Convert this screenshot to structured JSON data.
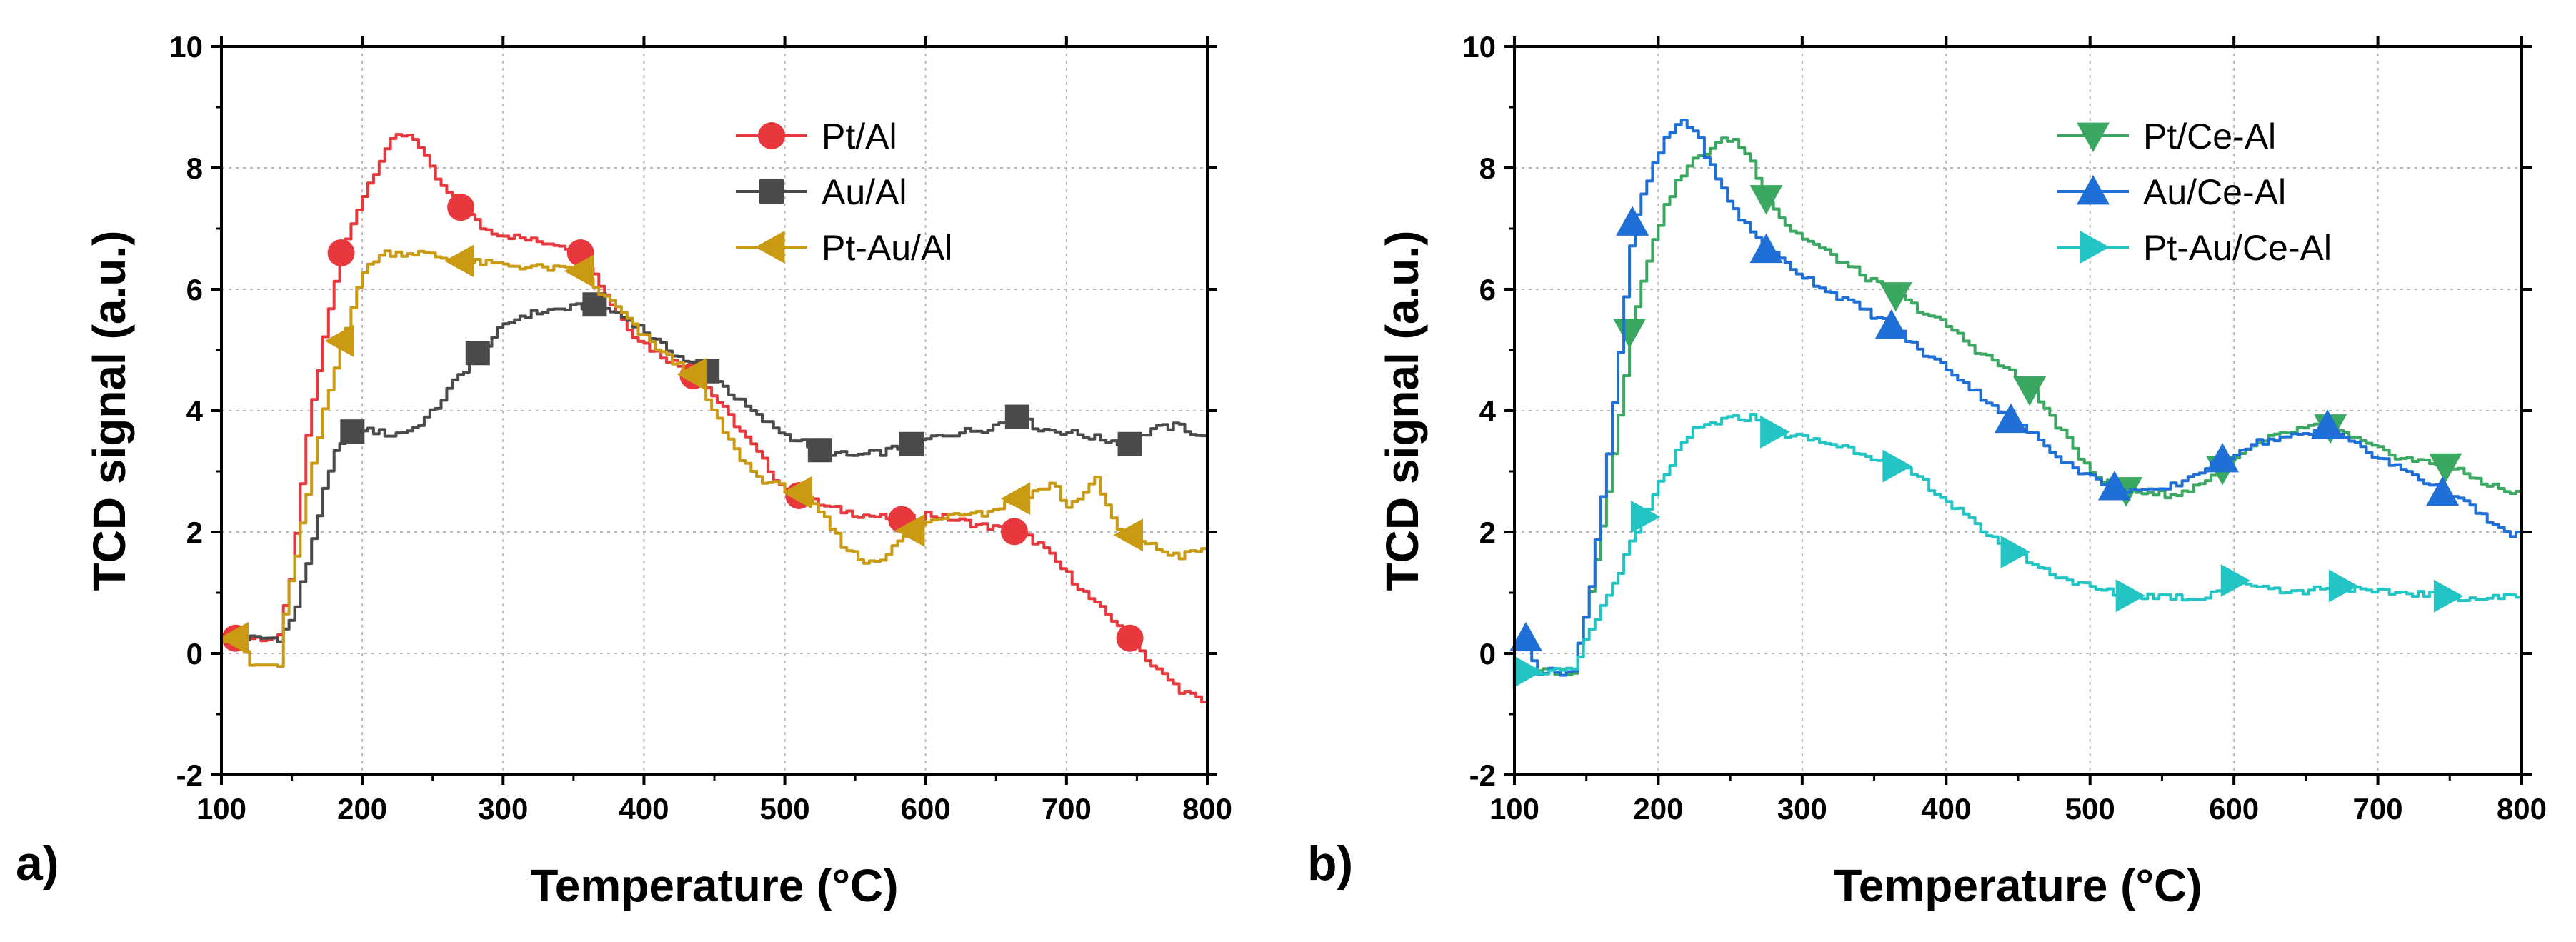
{
  "figure": {
    "description_panels": [
      "a)",
      "b)"
    ]
  },
  "chart_data": [
    {
      "type": "line",
      "panel_label": "a)",
      "xlabel": "Temperature (°C)",
      "ylabel": "TCD signal (a.u.)",
      "xlim": [
        100,
        800
      ],
      "ylim": [
        -2,
        10
      ],
      "xticks": [
        100,
        200,
        300,
        400,
        500,
        600,
        700,
        800
      ],
      "yticks": [
        -2,
        0,
        2,
        4,
        6,
        8,
        10
      ],
      "grid": true,
      "legend_position": "top-right",
      "series": [
        {
          "name": "Pt/Al",
          "color": "#e8383d",
          "marker": "circle",
          "points": [
            [
              100,
              0.25
            ],
            [
              140,
              0.25
            ],
            [
              150,
              1.5
            ],
            [
              160,
              3.6
            ],
            [
              175,
              5.6
            ],
            [
              185,
              6.6
            ],
            [
              195,
              7.3
            ],
            [
              205,
              7.8
            ],
            [
              215,
              8.3
            ],
            [
              225,
              8.55
            ],
            [
              235,
              8.55
            ],
            [
              245,
              8.1
            ],
            [
              255,
              7.7
            ],
            [
              270,
              7.35
            ],
            [
              285,
              7.0
            ],
            [
              300,
              6.9
            ],
            [
              320,
              6.8
            ],
            [
              340,
              6.75
            ],
            [
              355,
              6.6
            ],
            [
              365,
              6.2
            ],
            [
              375,
              5.8
            ],
            [
              390,
              5.3
            ],
            [
              405,
              5.0
            ],
            [
              420,
              4.8
            ],
            [
              440,
              4.5
            ],
            [
              460,
              3.9
            ],
            [
              480,
              3.3
            ],
            [
              495,
              2.8
            ],
            [
              510,
              2.6
            ],
            [
              530,
              2.4
            ],
            [
              550,
              2.3
            ],
            [
              565,
              2.25
            ],
            [
              585,
              2.2
            ],
            [
              600,
              2.3
            ],
            [
              620,
              2.2
            ],
            [
              640,
              2.1
            ],
            [
              665,
              2.0
            ],
            [
              680,
              1.8
            ],
            [
              700,
              1.3
            ],
            [
              720,
              0.8
            ],
            [
              735,
              0.5
            ],
            [
              745,
              0.25
            ],
            [
              760,
              -0.2
            ],
            [
              780,
              -0.6
            ],
            [
              800,
              -0.85
            ]
          ],
          "markers_x": [
            110,
            185,
            270,
            355,
            435,
            510,
            583,
            663,
            745
          ]
        },
        {
          "name": "Au/Al",
          "color": "#4a4a4a",
          "marker": "square",
          "points": [
            [
              100,
              0.25
            ],
            [
              140,
              0.25
            ],
            [
              150,
              0.6
            ],
            [
              160,
              1.5
            ],
            [
              170,
              2.5
            ],
            [
              180,
              3.3
            ],
            [
              192,
              3.65
            ],
            [
              200,
              3.7
            ],
            [
              220,
              3.6
            ],
            [
              235,
              3.7
            ],
            [
              250,
              4.0
            ],
            [
              265,
              4.5
            ],
            [
              282,
              4.95
            ],
            [
              295,
              5.3
            ],
            [
              310,
              5.55
            ],
            [
              330,
              5.65
            ],
            [
              350,
              5.7
            ],
            [
              365,
              5.75
            ],
            [
              380,
              5.6
            ],
            [
              395,
              5.4
            ],
            [
              410,
              5.1
            ],
            [
              430,
              4.8
            ],
            [
              445,
              4.65
            ],
            [
              460,
              4.3
            ],
            [
              480,
              3.9
            ],
            [
              500,
              3.6
            ],
            [
              525,
              3.35
            ],
            [
              545,
              3.25
            ],
            [
              565,
              3.3
            ],
            [
              590,
              3.45
            ],
            [
              610,
              3.6
            ],
            [
              640,
              3.7
            ],
            [
              665,
              3.9
            ],
            [
              680,
              3.7
            ],
            [
              700,
              3.65
            ],
            [
              720,
              3.55
            ],
            [
              745,
              3.45
            ],
            [
              760,
              3.7
            ],
            [
              780,
              3.75
            ],
            [
              800,
              3.5
            ]
          ],
          "markers_x": [
            193,
            282,
            365,
            445,
            525,
            590,
            665,
            745
          ]
        },
        {
          "name": "Pt-Au/Al",
          "color": "#c99a12",
          "marker": "triangle-left",
          "points": [
            [
              100,
              0.25
            ],
            [
              110,
              0.25
            ],
            [
              120,
              -0.2
            ],
            [
              140,
              -0.2
            ],
            [
              145,
              0.8
            ],
            [
              155,
              2.0
            ],
            [
              170,
              3.8
            ],
            [
              185,
              5.15
            ],
            [
              195,
              6.0
            ],
            [
              205,
              6.45
            ],
            [
              215,
              6.6
            ],
            [
              240,
              6.6
            ],
            [
              260,
              6.5
            ],
            [
              275,
              6.45
            ],
            [
              300,
              6.4
            ],
            [
              330,
              6.35
            ],
            [
              355,
              6.3
            ],
            [
              365,
              6.0
            ],
            [
              380,
              5.7
            ],
            [
              395,
              5.3
            ],
            [
              410,
              5.0
            ],
            [
              420,
              4.8
            ],
            [
              435,
              4.6
            ],
            [
              450,
              3.9
            ],
            [
              465,
              3.3
            ],
            [
              480,
              2.9
            ],
            [
              495,
              2.75
            ],
            [
              510,
              2.65
            ],
            [
              525,
              2.3
            ],
            [
              540,
              1.8
            ],
            [
              555,
              1.5
            ],
            [
              570,
              1.6
            ],
            [
              585,
              1.95
            ],
            [
              595,
              2.1
            ],
            [
              615,
              2.3
            ],
            [
              630,
              2.35
            ],
            [
              640,
              2.3
            ],
            [
              660,
              2.5
            ],
            [
              670,
              2.6
            ],
            [
              690,
              2.8
            ],
            [
              700,
              2.4
            ],
            [
              720,
              2.85
            ],
            [
              735,
              2.05
            ],
            [
              750,
              1.9
            ],
            [
              765,
              1.7
            ],
            [
              780,
              1.6
            ],
            [
              800,
              1.75
            ]
          ],
          "markers_x": [
            110,
            185,
            270,
            355,
            435,
            510,
            590,
            665,
            745
          ]
        }
      ]
    },
    {
      "type": "line",
      "panel_label": "b)",
      "xlabel": "Temperature (°C)",
      "ylabel": "TCD signal (a.u.)",
      "xlim": [
        100,
        800
      ],
      "ylim": [
        -2,
        10
      ],
      "xticks": [
        100,
        200,
        300,
        400,
        500,
        600,
        700,
        800
      ],
      "yticks": [
        -2,
        0,
        2,
        4,
        6,
        8,
        10
      ],
      "grid": true,
      "legend_position": "top-right",
      "series": [
        {
          "name": "Pt/Ce-Al",
          "color": "#3aa860",
          "marker": "triangle-down",
          "points": [
            [
              100,
              -0.3
            ],
            [
              140,
              -0.3
            ],
            [
              150,
              0.8
            ],
            [
              165,
              2.8
            ],
            [
              180,
              5.3
            ],
            [
              195,
              6.8
            ],
            [
              210,
              7.7
            ],
            [
              225,
              8.15
            ],
            [
              240,
              8.4
            ],
            [
              250,
              8.5
            ],
            [
              262,
              8.2
            ],
            [
              275,
              7.5
            ],
            [
              290,
              7.0
            ],
            [
              310,
              6.7
            ],
            [
              330,
              6.4
            ],
            [
              350,
              6.1
            ],
            [
              365,
              5.9
            ],
            [
              385,
              5.6
            ],
            [
              400,
              5.4
            ],
            [
              420,
              5.0
            ],
            [
              440,
              4.7
            ],
            [
              458,
              4.35
            ],
            [
              475,
              3.8
            ],
            [
              490,
              3.3
            ],
            [
              505,
              2.9
            ],
            [
              520,
              2.7
            ],
            [
              540,
              2.65
            ],
            [
              560,
              2.6
            ],
            [
              575,
              2.8
            ],
            [
              590,
              3.0
            ],
            [
              605,
              3.3
            ],
            [
              625,
              3.55
            ],
            [
              645,
              3.7
            ],
            [
              665,
              3.75
            ],
            [
              680,
              3.55
            ],
            [
              700,
              3.35
            ],
            [
              720,
              3.2
            ],
            [
              745,
              3.1
            ],
            [
              765,
              2.9
            ],
            [
              785,
              2.7
            ],
            [
              800,
              2.6
            ]
          ],
          "markers_x": [
            180,
            275,
            365,
            458,
            525,
            592,
            667,
            747
          ]
        },
        {
          "name": "Au/Ce-Al",
          "color": "#1f6fd6",
          "marker": "triangle-up",
          "points": [
            [
              100,
              0.25
            ],
            [
              108,
              0.25
            ],
            [
              115,
              -0.3
            ],
            [
              140,
              -0.3
            ],
            [
              150,
              0.8
            ],
            [
              165,
              3.5
            ],
            [
              182,
              7.1
            ],
            [
              195,
              8.0
            ],
            [
              205,
              8.5
            ],
            [
              215,
              8.8
            ],
            [
              225,
              8.6
            ],
            [
              240,
              7.8
            ],
            [
              255,
              7.2
            ],
            [
              275,
              6.65
            ],
            [
              295,
              6.3
            ],
            [
              315,
              6.0
            ],
            [
              335,
              5.75
            ],
            [
              350,
              5.55
            ],
            [
              362,
              5.4
            ],
            [
              380,
              5.0
            ],
            [
              400,
              4.7
            ],
            [
              420,
              4.3
            ],
            [
              445,
              3.85
            ],
            [
              465,
              3.5
            ],
            [
              485,
              3.1
            ],
            [
              500,
              2.9
            ],
            [
              515,
              2.75
            ],
            [
              525,
              2.7
            ],
            [
              545,
              2.65
            ],
            [
              560,
              2.8
            ],
            [
              575,
              3.0
            ],
            [
              592,
              3.2
            ],
            [
              610,
              3.45
            ],
            [
              630,
              3.55
            ],
            [
              650,
              3.6
            ],
            [
              665,
              3.75
            ],
            [
              680,
              3.5
            ],
            [
              700,
              3.2
            ],
            [
              720,
              3.0
            ],
            [
              745,
              2.65
            ],
            [
              765,
              2.4
            ],
            [
              785,
              2.0
            ],
            [
              800,
              1.95
            ]
          ],
          "markers_x": [
            108,
            182,
            275,
            362,
            445,
            517,
            592,
            665,
            745
          ]
        },
        {
          "name": "Pt-Au/Ce-Al",
          "color": "#22c4c4",
          "marker": "triangle-right",
          "points": [
            [
              100,
              -0.3
            ],
            [
              140,
              -0.3
            ],
            [
              150,
              0.3
            ],
            [
              165,
              1.0
            ],
            [
              180,
              1.8
            ],
            [
              190,
              2.25
            ],
            [
              200,
              2.8
            ],
            [
              212,
              3.3
            ],
            [
              225,
              3.7
            ],
            [
              245,
              3.85
            ],
            [
              265,
              3.9
            ],
            [
              280,
              3.65
            ],
            [
              300,
              3.55
            ],
            [
              330,
              3.4
            ],
            [
              360,
              3.15
            ],
            [
              380,
              2.9
            ],
            [
              400,
              2.5
            ],
            [
              420,
              2.1
            ],
            [
              445,
              1.7
            ],
            [
              465,
              1.4
            ],
            [
              485,
              1.2
            ],
            [
              505,
              1.05
            ],
            [
              525,
              0.95
            ],
            [
              550,
              0.95
            ],
            [
              575,
              0.9
            ],
            [
              600,
              1.2
            ],
            [
              620,
              1.1
            ],
            [
              645,
              1.0
            ],
            [
              670,
              1.15
            ],
            [
              690,
              1.0
            ],
            [
              720,
              1.0
            ],
            [
              745,
              0.95
            ],
            [
              770,
              0.9
            ],
            [
              800,
              0.95
            ]
          ],
          "markers_x": [
            108,
            190,
            280,
            365,
            447,
            527,
            600,
            675,
            748
          ]
        }
      ]
    }
  ]
}
